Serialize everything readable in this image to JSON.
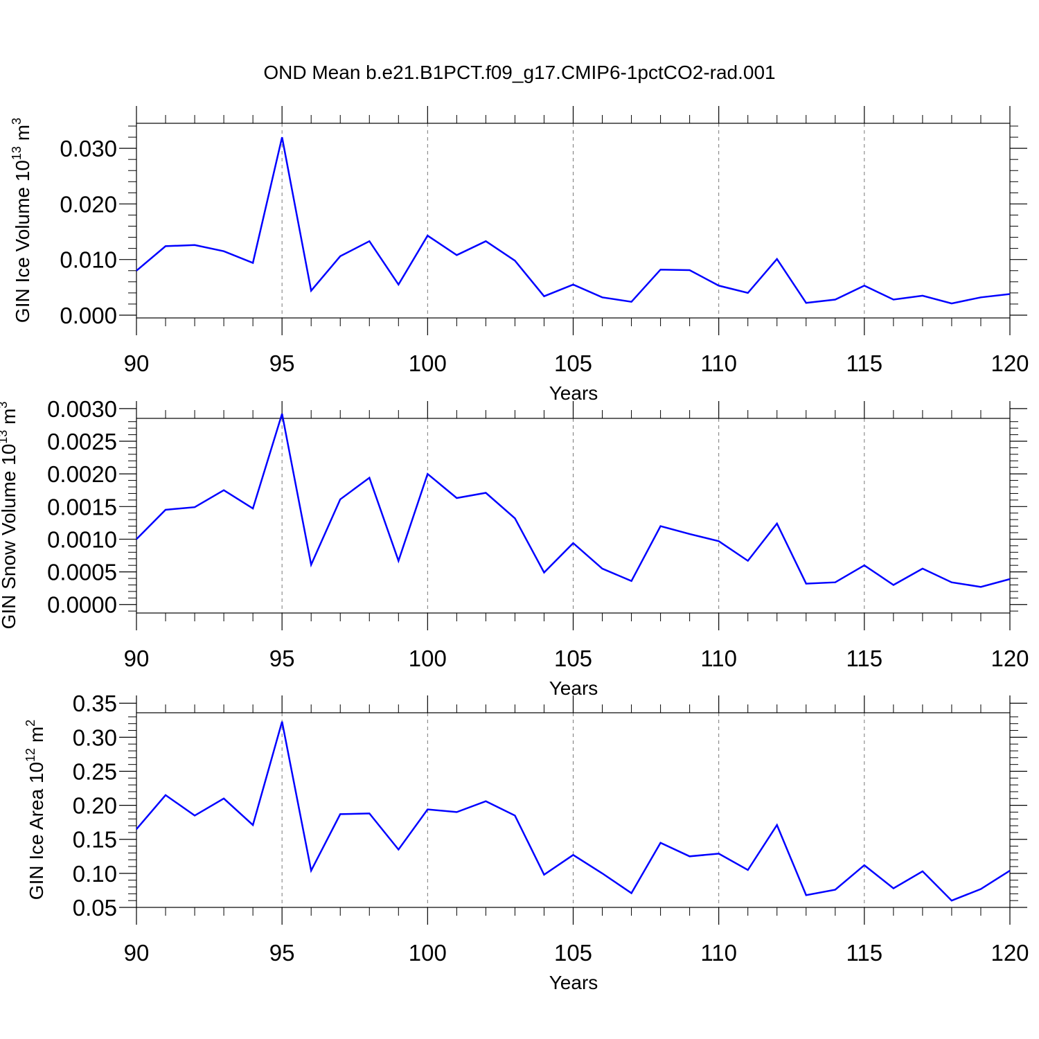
{
  "title": "OND Mean b.e21.B1PCT.f09_g17.CMIP6-1pctCO2-rad.001",
  "line_color": "#0000ff",
  "chart_data": [
    {
      "type": "line",
      "xlabel": "Years",
      "ylabel": {
        "text": "GIN Ice Volume 10",
        "sup": "13",
        "unit": " m",
        "unit_sup": "3"
      },
      "xlim": [
        90,
        120
      ],
      "ylim": [
        -0.0005,
        0.0345
      ],
      "x_ticks": [
        90,
        95,
        100,
        105,
        110,
        115,
        120
      ],
      "x_tick_labels": [
        "90",
        "95",
        "100",
        "105",
        "110",
        "115",
        "120"
      ],
      "y_ticks": [
        0.0,
        0.01,
        0.02,
        0.03
      ],
      "y_tick_labels": [
        "0.000",
        "0.010",
        "0.020",
        "0.030"
      ],
      "grid": "vertical-dashed",
      "x": [
        90,
        91,
        92,
        93,
        94,
        95,
        96,
        97,
        98,
        99,
        100,
        101,
        102,
        103,
        104,
        105,
        106,
        107,
        108,
        109,
        110,
        111,
        112,
        113,
        114,
        115,
        116,
        117,
        118,
        119,
        120
      ],
      "values": [
        0.008,
        0.0124,
        0.0126,
        0.0115,
        0.0094,
        0.032,
        0.0044,
        0.0106,
        0.0133,
        0.0055,
        0.0143,
        0.0108,
        0.0133,
        0.0098,
        0.0034,
        0.0055,
        0.0032,
        0.0024,
        0.0082,
        0.0081,
        0.0053,
        0.004,
        0.0101,
        0.0022,
        0.0028,
        0.0053,
        0.0028,
        0.0035,
        0.0021,
        0.0032,
        0.0038
      ]
    },
    {
      "type": "line",
      "xlabel": "Years",
      "ylabel": {
        "text": "GIN Snow Volume 10",
        "sup": "13",
        "unit": " m",
        "unit_sup": "3"
      },
      "xlim": [
        90,
        120
      ],
      "ylim": [
        -0.00013,
        0.00285
      ],
      "x_ticks": [
        90,
        95,
        100,
        105,
        110,
        115,
        120
      ],
      "x_tick_labels": [
        "90",
        "95",
        "100",
        "105",
        "110",
        "115",
        "120"
      ],
      "y_ticks": [
        0.0,
        0.0005,
        0.001,
        0.0015,
        0.002,
        0.0025,
        0.003
      ],
      "y_tick_labels": [
        "0.0000",
        "0.0005",
        "0.0010",
        "0.0015",
        "0.0020",
        "0.0025",
        "0.0030"
      ],
      "grid": "vertical-dashed",
      "x": [
        90,
        91,
        92,
        93,
        94,
        95,
        96,
        97,
        98,
        99,
        100,
        101,
        102,
        103,
        104,
        105,
        106,
        107,
        108,
        109,
        110,
        111,
        112,
        113,
        114,
        115,
        116,
        117,
        118,
        119,
        120
      ],
      "values": [
        0.001,
        0.00145,
        0.00149,
        0.00175,
        0.00147,
        0.00292,
        0.00061,
        0.00161,
        0.00194,
        0.00067,
        0.002,
        0.00163,
        0.00171,
        0.00132,
        0.00049,
        0.00094,
        0.00055,
        0.00036,
        0.0012,
        0.00108,
        0.00097,
        0.00067,
        0.00124,
        0.00032,
        0.00034,
        0.0006,
        0.0003,
        0.00055,
        0.00034,
        0.00027,
        0.00039
      ]
    },
    {
      "type": "line",
      "xlabel": "Years",
      "ylabel": {
        "text": "GIN Ice Area 10",
        "sup": "12",
        "unit": " m",
        "unit_sup": "2"
      },
      "xlim": [
        90,
        120
      ],
      "ylim": [
        0.05,
        0.336
      ],
      "x_ticks": [
        90,
        95,
        100,
        105,
        110,
        115,
        120
      ],
      "x_tick_labels": [
        "90",
        "95",
        "100",
        "105",
        "110",
        "115",
        "120"
      ],
      "y_ticks": [
        0.05,
        0.1,
        0.15,
        0.2,
        0.25,
        0.3,
        0.35
      ],
      "y_tick_labels": [
        "0.05",
        "0.10",
        "0.15",
        "0.20",
        "0.25",
        "0.30",
        "0.35"
      ],
      "grid": "vertical-dashed",
      "x": [
        90,
        91,
        92,
        93,
        94,
        95,
        96,
        97,
        98,
        99,
        100,
        101,
        102,
        103,
        104,
        105,
        106,
        107,
        108,
        109,
        110,
        111,
        112,
        113,
        114,
        115,
        116,
        117,
        118,
        119,
        120
      ],
      "values": [
        0.165,
        0.215,
        0.185,
        0.21,
        0.171,
        0.323,
        0.104,
        0.187,
        0.188,
        0.135,
        0.194,
        0.19,
        0.206,
        0.185,
        0.098,
        0.127,
        0.1,
        0.071,
        0.145,
        0.125,
        0.129,
        0.105,
        0.171,
        0.068,
        0.076,
        0.112,
        0.078,
        0.103,
        0.06,
        0.077,
        0.104
      ]
    }
  ]
}
